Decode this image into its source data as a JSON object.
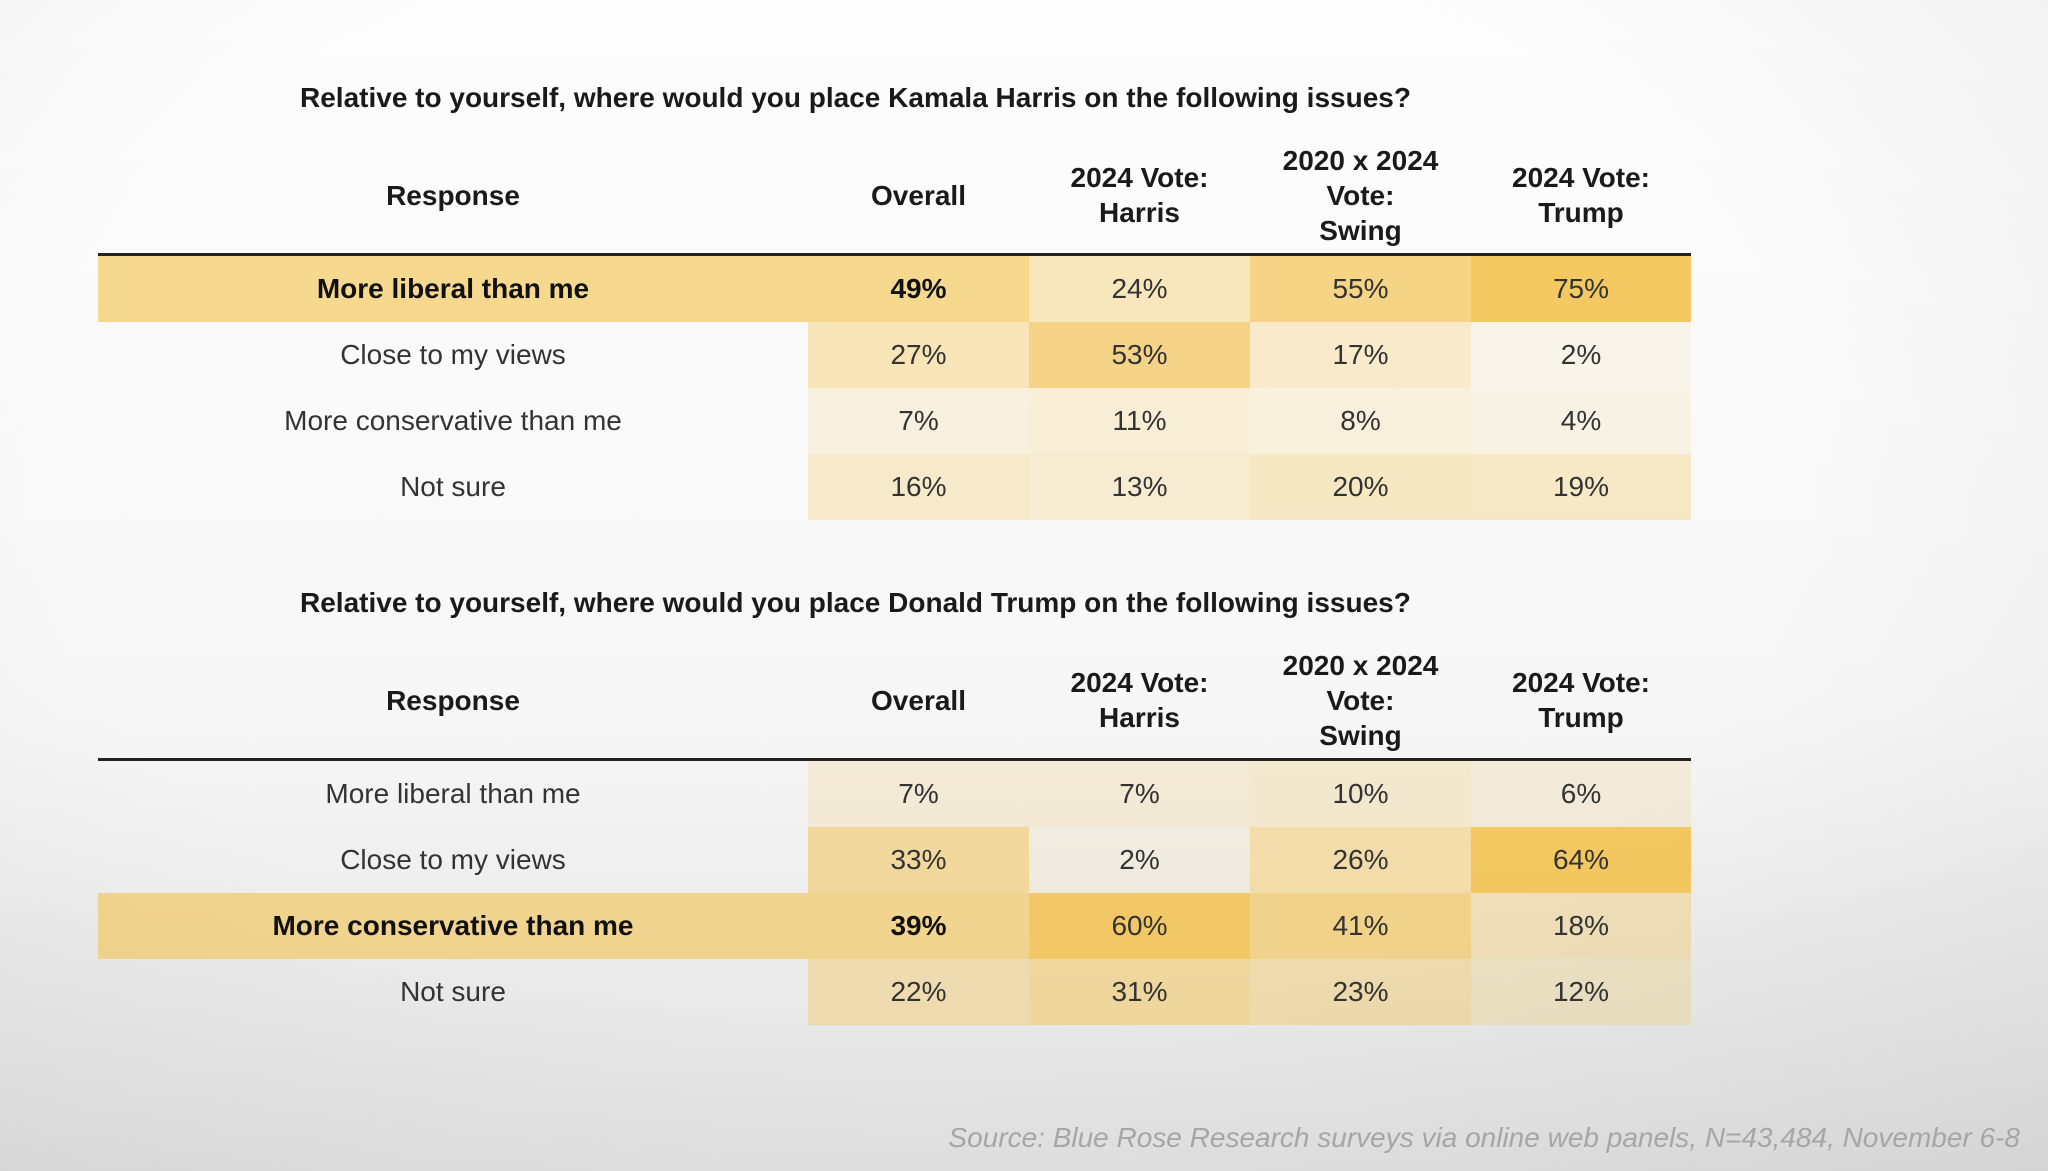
{
  "source": "Source: Blue Rose Research surveys via online web panels, N=43,484, November 6-8",
  "chart_data": [
    {
      "type": "table",
      "title": "Relative to yourself, where would you place Kamala Harris on the following issues?",
      "columns": [
        "Response",
        "Overall",
        "2024 Vote:\nHarris",
        "2020 x 2024\nVote:\nSwing",
        "2024 Vote:\nTrump"
      ],
      "rows": [
        {
          "label": "More liberal than me",
          "bold": true,
          "values": [
            49,
            24,
            55,
            75
          ],
          "display": [
            "49%",
            "24%",
            "55%",
            "75%"
          ]
        },
        {
          "label": "Close to my views",
          "bold": false,
          "values": [
            27,
            53,
            17,
            2
          ],
          "display": [
            "27%",
            "53%",
            "17%",
            "2%"
          ]
        },
        {
          "label": "More conservative than me",
          "bold": false,
          "values": [
            7,
            11,
            8,
            4
          ],
          "display": [
            "7%",
            "11%",
            "8%",
            "4%"
          ]
        },
        {
          "label": "Not sure",
          "bold": false,
          "values": [
            16,
            13,
            20,
            19
          ],
          "display": [
            "16%",
            "13%",
            "20%",
            "19%"
          ]
        }
      ],
      "highlight_color": "#f3c14c"
    },
    {
      "type": "table",
      "title": "Relative to yourself, where would you place Donald Trump on the following issues?",
      "columns": [
        "Response",
        "Overall",
        "2024 Vote:\nHarris",
        "2020 x 2024\nVote:\nSwing",
        "2024 Vote:\nTrump"
      ],
      "rows": [
        {
          "label": "More liberal than me",
          "bold": false,
          "values": [
            7,
            7,
            10,
            6
          ],
          "display": [
            "7%",
            "7%",
            "10%",
            "6%"
          ]
        },
        {
          "label": "Close to my views",
          "bold": false,
          "values": [
            33,
            2,
            26,
            64
          ],
          "display": [
            "33%",
            "2%",
            "26%",
            "64%"
          ]
        },
        {
          "label": "More conservative than me",
          "bold": true,
          "values": [
            39,
            60,
            41,
            18
          ],
          "display": [
            "39%",
            "60%",
            "41%",
            "18%"
          ]
        },
        {
          "label": "Not sure",
          "bold": false,
          "values": [
            22,
            31,
            23,
            12
          ],
          "display": [
            "22%",
            "31%",
            "23%",
            "12%"
          ]
        }
      ],
      "highlight_color": "#f3c14c"
    }
  ]
}
